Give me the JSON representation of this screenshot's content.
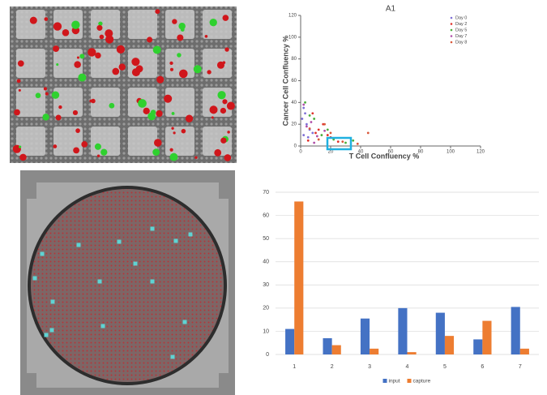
{
  "chart_data": [
    {
      "type": "scatter",
      "title": "A1",
      "x_label": "T Cell Confluency %",
      "y_label": "Cancer Cell Confluency %",
      "xlim": [
        0,
        120
      ],
      "ylim": [
        0,
        120
      ],
      "xticks": [
        0,
        20,
        40,
        60,
        80,
        100,
        120
      ],
      "yticks": [
        0,
        20,
        40,
        60,
        80,
        100,
        120
      ],
      "grid": false,
      "legend": "upper-right",
      "series": [
        {
          "name": "Day 0",
          "color": "#7f6fd6",
          "x": [
            2,
            4,
            3,
            6,
            1,
            5,
            8,
            2
          ],
          "values": [
            10,
            20,
            30,
            15,
            25,
            8,
            12,
            35
          ]
        },
        {
          "name": "Day 2",
          "color": "#e0302a",
          "x": [
            5,
            10,
            15,
            20,
            8,
            12,
            25,
            18
          ],
          "values": [
            5,
            12,
            20,
            8,
            30,
            15,
            4,
            10
          ]
        },
        {
          "name": "Day 5",
          "color": "#4caf3c",
          "x": [
            3,
            9,
            14,
            22,
            30,
            35,
            18,
            6
          ],
          "values": [
            40,
            25,
            10,
            6,
            3,
            5,
            15,
            28
          ]
        },
        {
          "name": "Day 7",
          "color": "#b04fa8",
          "x": [
            4,
            7,
            11,
            16,
            2,
            9
          ],
          "values": [
            18,
            22,
            9,
            14,
            38,
            3
          ]
        },
        {
          "name": "Day 8",
          "color": "#d9573a",
          "x": [
            12,
            20,
            28,
            45,
            38,
            6,
            16
          ],
          "values": [
            6,
            12,
            4,
            12,
            2,
            16,
            20
          ]
        }
      ]
    },
    {
      "type": "bar",
      "categories": [
        "1",
        "2",
        "3",
        "4",
        "5",
        "6",
        "7"
      ],
      "ylim": [
        0,
        70
      ],
      "yticks": [
        0,
        10,
        20,
        30,
        40,
        50,
        60,
        70
      ],
      "grid": true,
      "legend": "bottom",
      "series": [
        {
          "name": "input",
          "color": "#4472c4",
          "values": [
            11,
            7,
            15.5,
            20,
            18,
            6.5,
            20.5
          ]
        },
        {
          "name": "capture",
          "color": "#ed7d31",
          "values": [
            66,
            4,
            2.5,
            1,
            8,
            14.5,
            2.5
          ]
        }
      ]
    }
  ]
}
